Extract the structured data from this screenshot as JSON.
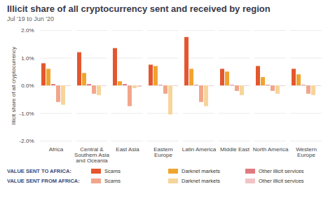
{
  "chart_data": {
    "type": "bar",
    "title": "Illicit share of all cryptocurrency sent and received by region",
    "subtitle": "Jul '19 to Jun '20",
    "y_label": "Illicit share of all cryptocurrency",
    "categories": [
      "Africa",
      "Central & Southern Asia and Oceania",
      "East Asia",
      "Eastern Europe",
      "Latin America",
      "Middle East",
      "North America",
      "Western Europe"
    ],
    "series": [
      {
        "name": "Scams",
        "group": "VALUE SENT TO AFRICA:",
        "color": "#e4572e",
        "values": [
          0.8,
          1.2,
          1.35,
          0.75,
          1.75,
          0.6,
          0.7,
          0.6
        ]
      },
      {
        "name": "Darknet markets",
        "group": "VALUE SENT TO AFRICA:",
        "color": "#f0a430",
        "values": [
          0.6,
          0.45,
          0.15,
          0.7,
          0.6,
          0.5,
          0.3,
          0.4
        ]
      },
      {
        "name": "Other illicit services",
        "group": "VALUE SENT TO AFRICA:",
        "color": "#e07a80",
        "values": [
          0.05,
          0.05,
          0.05,
          0.02,
          0.02,
          0.02,
          0.02,
          0.02
        ]
      },
      {
        "name": "Scams",
        "group": "VALUE SENT FROM AFRICA:",
        "color": "#f2a58a",
        "values": [
          -0.6,
          -0.3,
          -0.75,
          -0.3,
          -0.6,
          -0.2,
          -0.2,
          -0.3
        ]
      },
      {
        "name": "Darknet markets",
        "group": "VALUE SENT FROM AFRICA:",
        "color": "#f6d49a",
        "values": [
          -0.7,
          -0.35,
          -0.1,
          -1.05,
          -0.75,
          -0.35,
          -0.3,
          -0.35
        ]
      },
      {
        "name": "Other illicit services",
        "group": "VALUE SENT FROM AFRICA:",
        "color": "#f3c4c6",
        "values": [
          -0.02,
          -0.02,
          -0.05,
          -0.02,
          -0.02,
          -0.02,
          -0.02,
          -0.02
        ]
      }
    ],
    "ylim": [
      -2,
      2
    ],
    "yticks": [
      {
        "value": -2,
        "label": "-2.0%"
      },
      {
        "value": -1,
        "label": "-1.0%"
      },
      {
        "value": 0,
        "label": "0.0%"
      },
      {
        "value": 1,
        "label": "1.0%"
      },
      {
        "value": 2,
        "label": "2.0%"
      }
    ],
    "grid": true
  }
}
